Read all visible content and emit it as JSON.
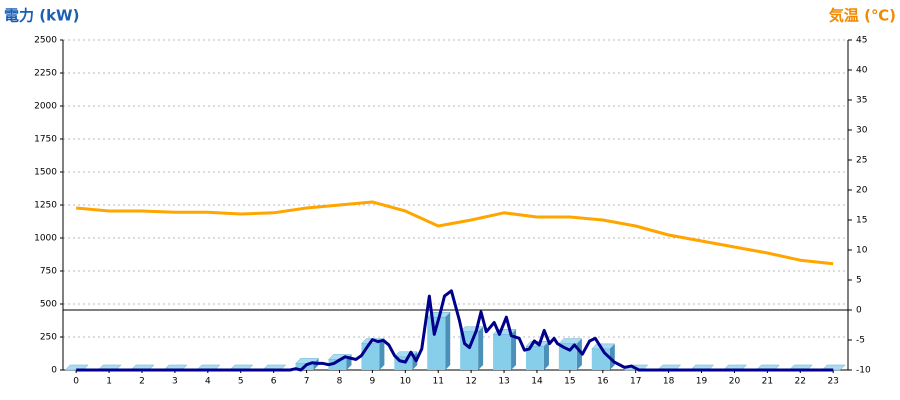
{
  "chart_data": {
    "type": "combo",
    "y_label": "電力 (kW)",
    "y2_label": "気温 (℃)",
    "x": [
      0,
      1,
      2,
      3,
      4,
      5,
      6,
      7,
      8,
      9,
      10,
      11,
      12,
      13,
      14,
      15,
      16,
      17,
      18,
      19,
      20,
      21,
      22,
      23
    ],
    "xlim": [
      -0.4,
      23.45
    ],
    "xticks": [
      0,
      1,
      2,
      3,
      4,
      5,
      6,
      7,
      8,
      9,
      10,
      11,
      12,
      13,
      14,
      15,
      16,
      17,
      18,
      19,
      20,
      21,
      22,
      23
    ],
    "ylim": [
      0,
      2500
    ],
    "yticks": [
      0,
      250,
      500,
      750,
      1000,
      1250,
      1500,
      1750,
      2000,
      2250,
      2500
    ],
    "y2lim": [
      -10,
      45
    ],
    "y2ticks": [
      -10,
      -5,
      0,
      5,
      10,
      15,
      20,
      25,
      30,
      35,
      40,
      45
    ],
    "grid": true,
    "series": [
      {
        "type": "bar",
        "color": "#87ceeb",
        "values": [
          0,
          0,
          0,
          0,
          0,
          0,
          0,
          50,
          80,
          200,
          100,
          400,
          290,
          270,
          180,
          200,
          160,
          0,
          0,
          0,
          0,
          0,
          0,
          0
        ]
      },
      {
        "type": "line",
        "color": "#00008b",
        "x": [
          0,
          6.5,
          6.67,
          6.83,
          7,
          7.17,
          7.33,
          7.5,
          7.67,
          7.83,
          8,
          8.17,
          8.33,
          8.5,
          8.67,
          8.83,
          9,
          9.17,
          9.33,
          9.5,
          9.67,
          9.83,
          10,
          10.17,
          10.33,
          10.5,
          10.73,
          10.88,
          11.05,
          11.19,
          11.4,
          11.64,
          11.8,
          11.95,
          12.16,
          12.3,
          12.46,
          12.6,
          12.7,
          12.86,
          13.07,
          13.22,
          13.46,
          13.62,
          13.77,
          13.92,
          14.07,
          14.22,
          14.38,
          14.52,
          14.62,
          14.83,
          15,
          15.14,
          15.38,
          15.6,
          15.77,
          16.05,
          16.35,
          16.66,
          16.87,
          17.1,
          23
        ],
        "values": [
          0,
          0,
          10,
          0,
          40,
          55,
          50,
          50,
          40,
          50,
          75,
          100,
          90,
          80,
          110,
          170,
          230,
          215,
          225,
          190,
          110,
          70,
          60,
          135,
          70,
          160,
          560,
          270,
          420,
          560,
          600,
          380,
          200,
          170,
          300,
          440,
          290,
          330,
          360,
          270,
          400,
          260,
          240,
          150,
          160,
          220,
          190,
          300,
          200,
          240,
          200,
          170,
          150,
          190,
          120,
          220,
          240,
          130,
          60,
          20,
          30,
          0,
          0
        ]
      },
      {
        "type": "line",
        "axis": "y2",
        "color": "#ffa500",
        "values": [
          17,
          16.5,
          16.5,
          16.3,
          16.3,
          16,
          16.2,
          17,
          17.5,
          18,
          16.5,
          14,
          15,
          16.2,
          15.5,
          15.5,
          15,
          14,
          12.5,
          11.5,
          10.5,
          9.5,
          8.3,
          7.7
        ]
      }
    ]
  }
}
